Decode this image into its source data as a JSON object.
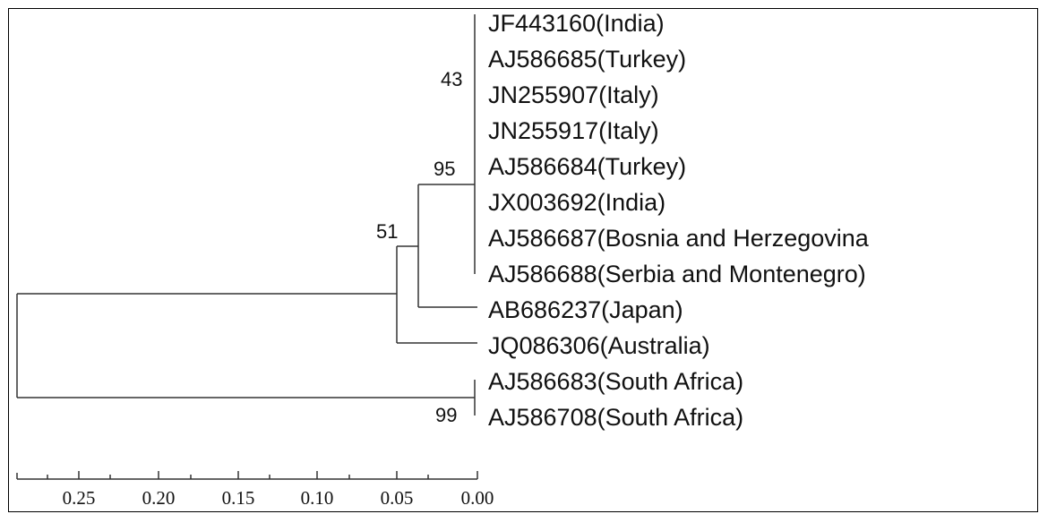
{
  "tree": {
    "taxa": [
      "JF443160(India)",
      "AJ586685(Turkey)",
      "JN255907(Italy)",
      "JN255917(Italy)",
      "AJ586684(Turkey)",
      "JX003692(India)",
      "AJ586687(Bosnia and Herzegovina",
      "AJ586688(Serbia and Montenegro)",
      "AB686237(Japan)",
      "JQ086306(Australia)",
      "AJ586683(South Africa)",
      "AJ586708(South Africa)"
    ],
    "bootstrap": {
      "clade_main": "43",
      "clade_japan": "95",
      "clade_australia": "51",
      "clade_south_africa": "99"
    }
  },
  "scale_axis": {
    "ticks": [
      "0.25",
      "0.20",
      "0.15",
      "0.10",
      "0.05",
      "0.00"
    ]
  }
}
